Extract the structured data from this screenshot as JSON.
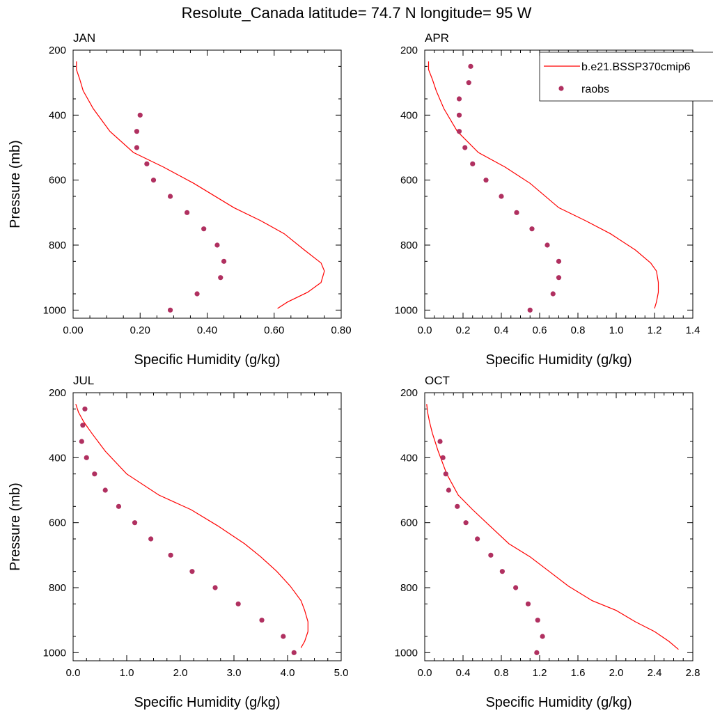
{
  "title": "Resolute_Canada  latitude= 74.7 N longitude= 95 W",
  "colors": {
    "model": "#ff0000",
    "obs": "#b03060",
    "axis": "#000000"
  },
  "legend": {
    "placement": "top-right",
    "entries": [
      {
        "label": "b.e21.BSSP370cmip6",
        "kind": "line",
        "color": "#ff0000"
      },
      {
        "label": "raobs",
        "kind": "marker",
        "color": "#b03060"
      }
    ]
  },
  "chart_data": [
    {
      "type": "line",
      "label": "JAN",
      "xlabel": "Specific Humidity (g/kg)",
      "ylabel": "Pressure (mb)",
      "xlim": [
        0,
        0.8
      ],
      "ylim": [
        200,
        1025
      ],
      "y_inverted": true,
      "xticks": [
        "0.00",
        "0.20",
        "0.40",
        "0.60",
        "0.80"
      ],
      "yticks": [
        "200",
        "400",
        "600",
        "800",
        "1000"
      ],
      "model": {
        "x": [
          0.01,
          0.01,
          0.02,
          0.03,
          0.06,
          0.11,
          0.18,
          0.27,
          0.36,
          0.48,
          0.56,
          0.63,
          0.69,
          0.74,
          0.75,
          0.74,
          0.7,
          0.64,
          0.61
        ],
        "y": [
          235,
          260,
          290,
          325,
          380,
          450,
          515,
          560,
          610,
          685,
          725,
          765,
          815,
          855,
          880,
          915,
          945,
          975,
          995
        ]
      },
      "obs": {
        "x": [
          0.2,
          0.19,
          0.19,
          0.22,
          0.24,
          0.29,
          0.34,
          0.39,
          0.43,
          0.45,
          0.44,
          0.37,
          0.29
        ],
        "y": [
          400,
          450,
          500,
          550,
          600,
          650,
          700,
          750,
          800,
          850,
          900,
          950,
          1000
        ]
      }
    },
    {
      "type": "line",
      "label": "APR",
      "xlabel": "Specific Humidity (g/kg)",
      "ylabel": "",
      "xlim": [
        0,
        1.4
      ],
      "ylim": [
        200,
        1025
      ],
      "y_inverted": true,
      "xticks": [
        "0.0",
        "0.2",
        "0.4",
        "0.6",
        "0.8",
        "1.0",
        "1.2",
        "1.4"
      ],
      "yticks": [
        "200",
        "400",
        "600",
        "800",
        "1000"
      ],
      "model": {
        "x": [
          0.02,
          0.02,
          0.04,
          0.06,
          0.1,
          0.17,
          0.28,
          0.42,
          0.55,
          0.7,
          0.84,
          0.97,
          1.1,
          1.18,
          1.21,
          1.22,
          1.22,
          1.21,
          1.2
        ],
        "y": [
          235,
          260,
          290,
          325,
          380,
          450,
          515,
          560,
          610,
          685,
          725,
          765,
          815,
          855,
          880,
          915,
          945,
          975,
          995
        ]
      },
      "obs": {
        "x": [
          0.24,
          0.23,
          0.18,
          0.18,
          0.18,
          0.21,
          0.25,
          0.32,
          0.4,
          0.48,
          0.56,
          0.64,
          0.7,
          0.7,
          0.67,
          0.55
        ],
        "y": [
          250,
          300,
          350,
          400,
          450,
          500,
          550,
          600,
          650,
          700,
          750,
          800,
          850,
          900,
          950,
          1000
        ]
      }
    },
    {
      "type": "line",
      "label": "JUL",
      "xlabel": "Specific Humidity (g/kg)",
      "ylabel": "Pressure (mb)",
      "xlim": [
        0,
        5.0
      ],
      "ylim": [
        200,
        1025
      ],
      "y_inverted": true,
      "xticks": [
        "0.0",
        "1.0",
        "2.0",
        "3.0",
        "4.0",
        "5.0"
      ],
      "yticks": [
        "200",
        "400",
        "600",
        "800",
        "1000"
      ],
      "model": {
        "x": [
          0.05,
          0.1,
          0.2,
          0.35,
          0.6,
          1.0,
          1.6,
          2.2,
          2.7,
          3.2,
          3.5,
          3.8,
          4.05,
          4.25,
          4.32,
          4.38,
          4.38,
          4.32,
          4.25
        ],
        "y": [
          235,
          260,
          290,
          325,
          380,
          450,
          515,
          560,
          610,
          665,
          705,
          750,
          795,
          840,
          870,
          905,
          935,
          965,
          985
        ]
      },
      "obs": {
        "x": [
          0.22,
          0.18,
          0.16,
          0.25,
          0.4,
          0.6,
          0.85,
          1.15,
          1.45,
          1.82,
          2.22,
          2.65,
          3.08,
          3.52,
          3.92,
          4.12
        ],
        "y": [
          250,
          300,
          350,
          400,
          450,
          500,
          550,
          600,
          650,
          700,
          750,
          800,
          850,
          900,
          950,
          1000
        ]
      }
    },
    {
      "type": "line",
      "label": "OCT",
      "xlabel": "Specific Humidity (g/kg)",
      "ylabel": "",
      "xlim": [
        0,
        2.8
      ],
      "ylim": [
        200,
        1025
      ],
      "y_inverted": true,
      "xticks": [
        "0.0",
        "0.4",
        "0.8",
        "1.2",
        "1.6",
        "2.0",
        "2.4",
        "2.8"
      ],
      "yticks": [
        "200",
        "400",
        "600",
        "800",
        "1000"
      ],
      "model": {
        "x": [
          0.02,
          0.03,
          0.05,
          0.08,
          0.14,
          0.23,
          0.35,
          0.5,
          0.68,
          0.88,
          1.1,
          1.3,
          1.5,
          1.75,
          2.0,
          2.2,
          2.4,
          2.55,
          2.65
        ],
        "y": [
          235,
          260,
          290,
          325,
          380,
          450,
          515,
          560,
          610,
          665,
          705,
          750,
          795,
          840,
          870,
          905,
          935,
          965,
          990
        ]
      },
      "obs": {
        "x": [
          0.16,
          0.19,
          0.22,
          0.25,
          0.34,
          0.43,
          0.55,
          0.69,
          0.81,
          0.95,
          1.08,
          1.18,
          1.23,
          1.17
        ],
        "y": [
          350,
          400,
          450,
          500,
          550,
          600,
          650,
          700,
          750,
          800,
          850,
          900,
          950,
          1000
        ]
      }
    }
  ]
}
